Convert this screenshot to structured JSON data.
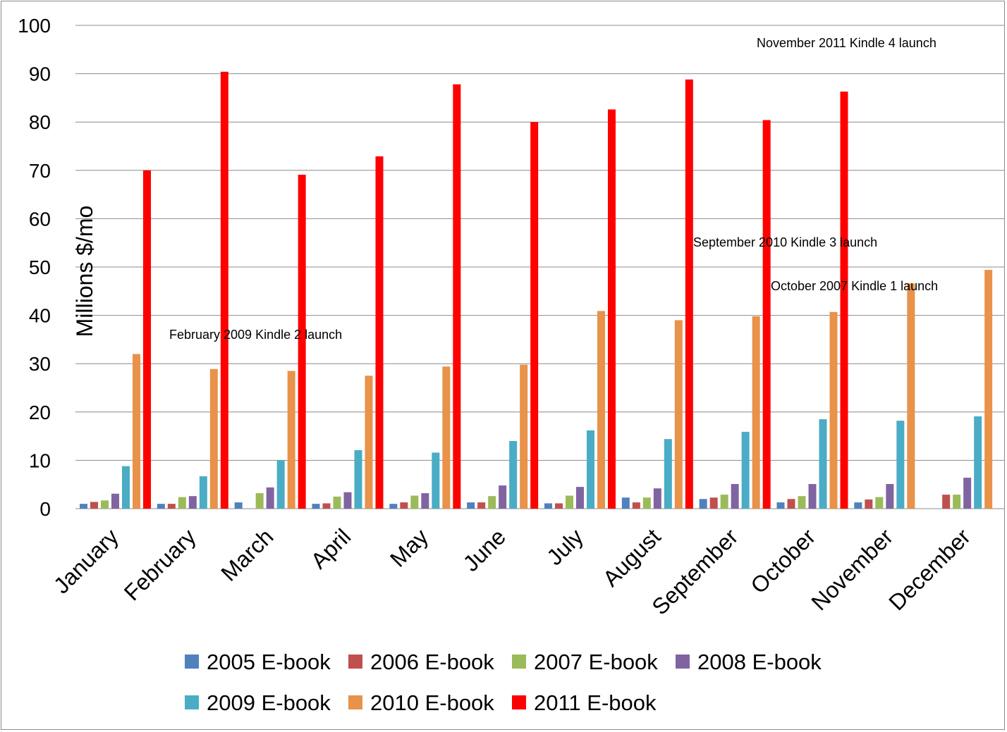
{
  "chart_data": {
    "type": "bar",
    "title": "",
    "xlabel": "",
    "ylabel": "Millions $/mo",
    "ylim": [
      0,
      100
    ],
    "yticks": [
      "0",
      "10",
      "20",
      "30",
      "40",
      "50",
      "60",
      "70",
      "80",
      "90",
      "100"
    ],
    "grid": true,
    "legend_position": "bottom",
    "categories": [
      "January",
      "February",
      "March",
      "April",
      "May",
      "June",
      "July",
      "August",
      "September",
      "October",
      "November",
      "December"
    ],
    "series": [
      {
        "name": "2005 E-book",
        "color": "#4F81BD",
        "values": [
          1.0,
          1.0,
          1.3,
          1.0,
          1.0,
          1.3,
          1.1,
          2.3,
          2.0,
          1.3,
          1.3,
          null
        ]
      },
      {
        "name": "2006 E-book",
        "color": "#C0504D",
        "values": [
          1.4,
          1.0,
          null,
          1.1,
          1.3,
          1.3,
          1.1,
          1.3,
          2.3,
          2.0,
          1.9,
          2.9
        ]
      },
      {
        "name": "2007 E-book",
        "color": "#9BBB59",
        "values": [
          1.7,
          2.4,
          3.2,
          2.5,
          2.7,
          2.6,
          2.7,
          2.3,
          2.9,
          2.6,
          2.4,
          2.9
        ]
      },
      {
        "name": "2008 E-book",
        "color": "#8064A2",
        "values": [
          3.1,
          2.6,
          4.4,
          3.4,
          3.2,
          4.8,
          4.5,
          4.2,
          5.1,
          5.1,
          5.1,
          6.4
        ]
      },
      {
        "name": "2009 E-book",
        "color": "#4BACC6",
        "values": [
          8.8,
          6.7,
          10.0,
          12.1,
          11.6,
          14.0,
          16.2,
          14.4,
          15.9,
          18.5,
          18.2,
          19.1
        ]
      },
      {
        "name": "2010 E-book",
        "color": "#E8924A",
        "values": [
          32.0,
          28.9,
          28.5,
          27.5,
          29.4,
          29.8,
          40.9,
          39.0,
          39.8,
          40.7,
          46.6,
          49.4
        ]
      },
      {
        "name": "2011 E-book",
        "color": "#FF0000",
        "values": [
          70.0,
          90.4,
          69.1,
          72.9,
          87.8,
          80.0,
          82.6,
          88.8,
          80.4,
          86.3,
          null,
          null
        ]
      }
    ],
    "annotations": [
      {
        "text": "November 2011 Kindle 4 launch"
      },
      {
        "text": "September 2010 Kindle 3 launch"
      },
      {
        "text": "October 2007 Kindle 1 launch"
      },
      {
        "text": "February 2009 Kindle 2 launch"
      }
    ]
  }
}
